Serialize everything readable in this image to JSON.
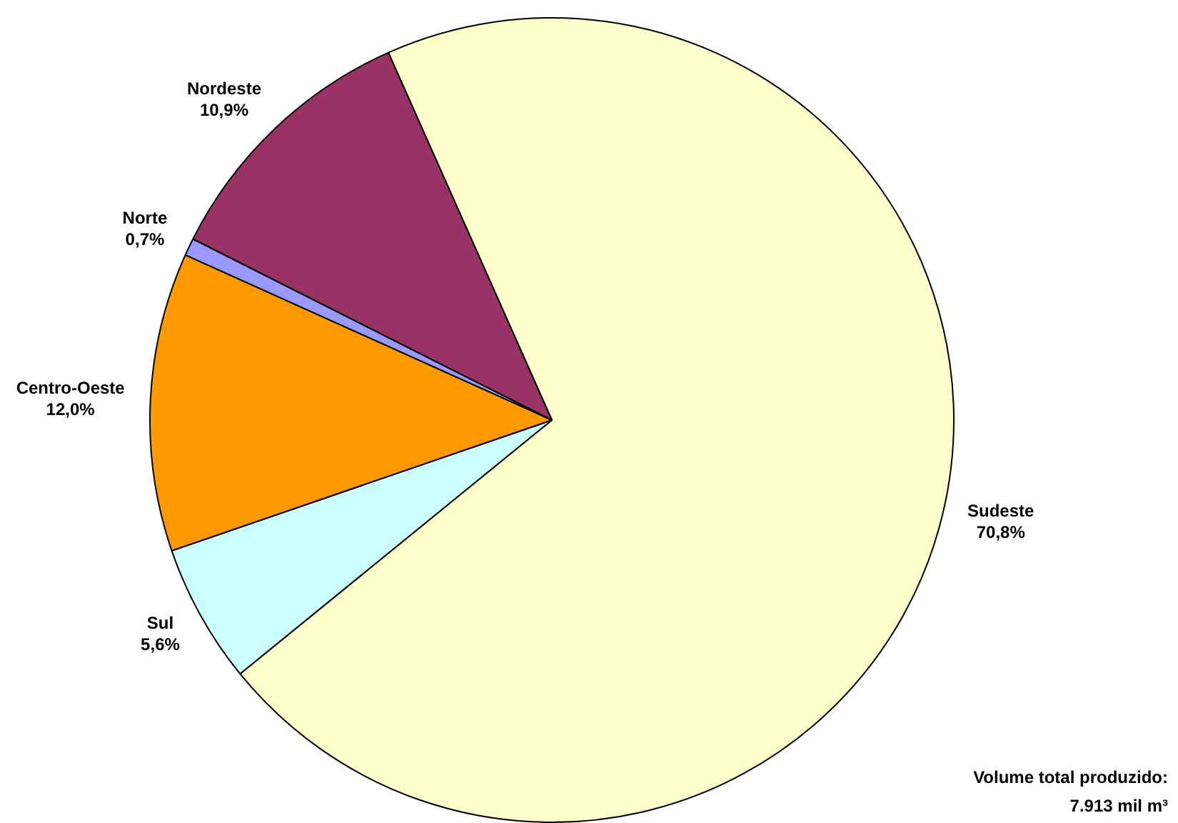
{
  "chart_data": {
    "type": "pie",
    "categories": [
      "Sudeste",
      "Sul",
      "Centro-Oeste",
      "Norte",
      "Nordeste"
    ],
    "values": [
      70.8,
      5.6,
      12.0,
      0.7,
      10.9
    ],
    "value_labels": [
      "70,8%",
      "5,6%",
      "12,0%",
      "0,7%",
      "10,9%"
    ],
    "colors": [
      "#ffffcc",
      "#ccffff",
      "#ff9900",
      "#9999ff",
      "#993366"
    ],
    "legend": false,
    "annotations": [
      "Volume total produzido:\n7.913 mil m³"
    ]
  }
}
